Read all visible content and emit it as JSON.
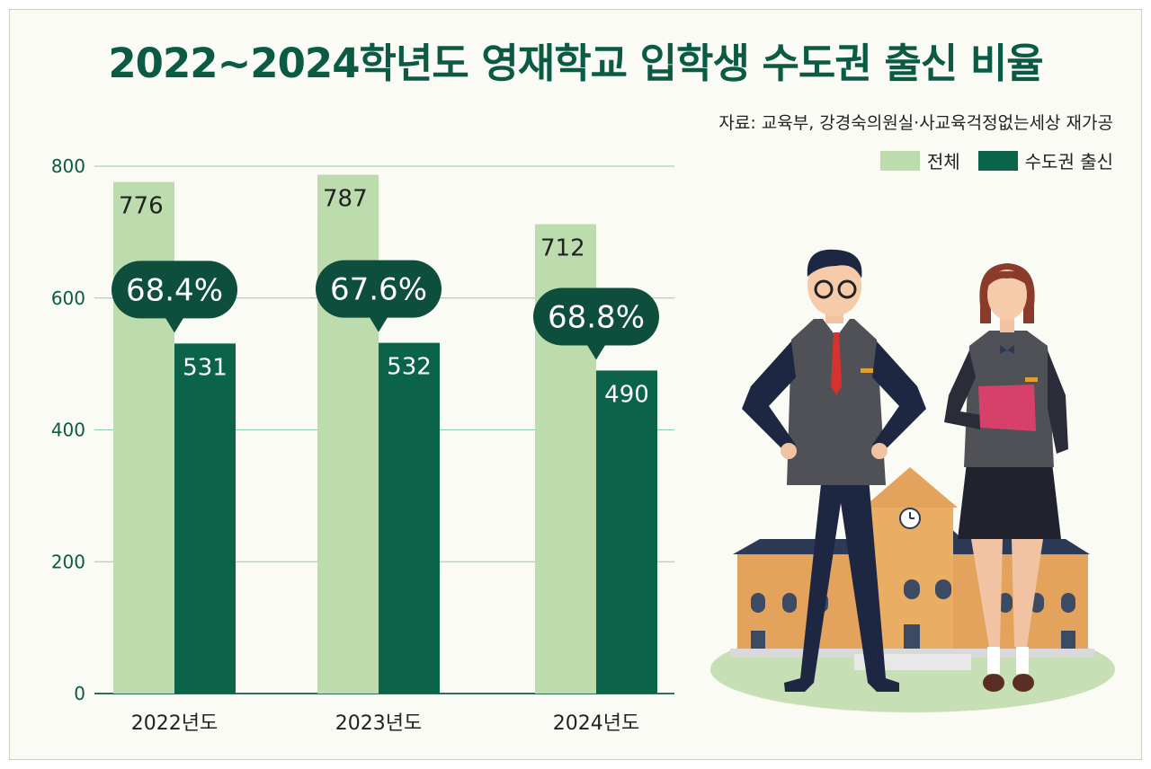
{
  "title": "2022~2024학년도 영재학교 입학생 수도권 출신 비율",
  "source": "자료: 교육부, 강경숙의원실·사교육걱정없는세상 재가공",
  "colors": {
    "total": "#bcdcae",
    "metro": "#0b634a",
    "bubble": "#0d4e3c",
    "grid": "#8fcab5",
    "title": "#0a5a44"
  },
  "chart_data": {
    "type": "bar",
    "categories": [
      "2022년도",
      "2023년도",
      "2024년도"
    ],
    "series": [
      {
        "name": "전체",
        "values": [
          776,
          787,
          712
        ]
      },
      {
        "name": "수도권 출신",
        "values": [
          531,
          532,
          490
        ]
      }
    ],
    "ratio_labels": [
      "68.4%",
      "67.6%",
      "68.8%"
    ],
    "ylim": [
      0,
      800
    ],
    "yticks": [
      0,
      200,
      400,
      600,
      800
    ],
    "grid": true,
    "legend": "top-right"
  }
}
